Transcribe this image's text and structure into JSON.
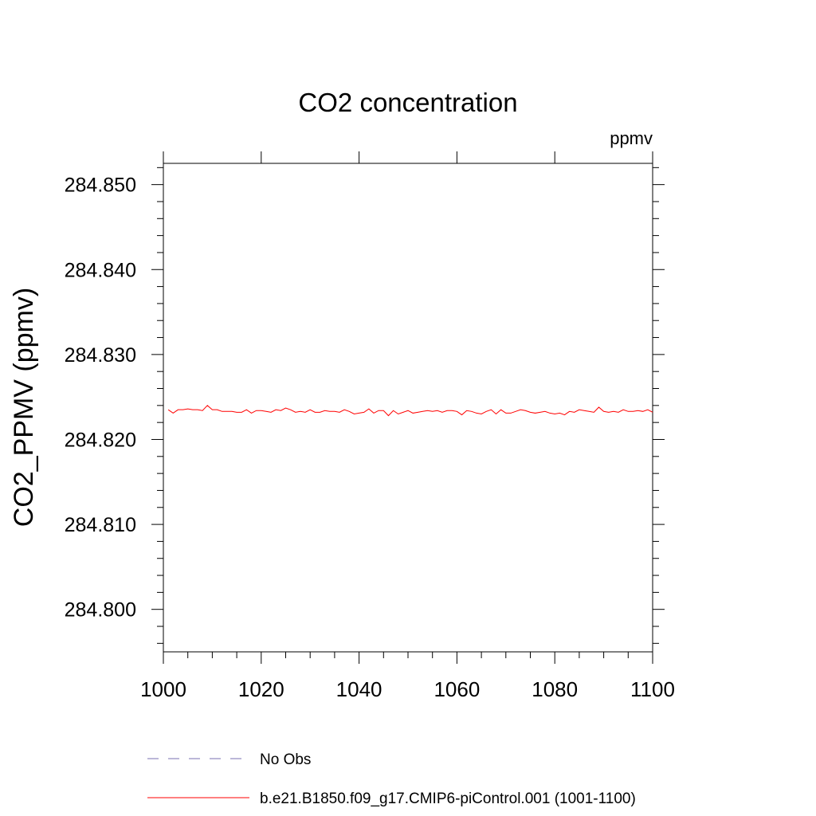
{
  "chart_data": {
    "type": "line",
    "title": "CO2 concentration",
    "units_label": "ppmv",
    "ylabel": "CO2_PPMV  (ppmv)",
    "xlabel": "",
    "xlim": [
      1000,
      1100
    ],
    "ylim": [
      284.795,
      284.8525
    ],
    "x_ticks": [
      1000,
      1020,
      1040,
      1060,
      1080,
      1100
    ],
    "x_tick_labels": [
      "1000",
      "1020",
      "1040",
      "1060",
      "1080",
      "1100"
    ],
    "y_ticks": [
      284.8,
      284.81,
      284.82,
      284.83,
      284.84,
      284.85
    ],
    "y_tick_labels": [
      "284.800",
      "284.810",
      "284.820",
      "284.830",
      "284.840",
      "284.850"
    ],
    "grid": false,
    "legend_position": "bottom",
    "series": [
      {
        "name": "b.e21.B1850.f09_g17.CMIP6-piControl.001 (1001-1100)",
        "color": "#ff0000",
        "style": "solid",
        "x_start": 1001,
        "x_step": 1,
        "values": [
          284.8235,
          284.8231,
          284.8235,
          284.8235,
          284.8236,
          284.8235,
          284.8235,
          284.8234,
          284.824,
          284.8235,
          284.8235,
          284.8233,
          284.8233,
          284.8233,
          284.8232,
          284.8232,
          284.8235,
          284.8231,
          284.8234,
          284.8234,
          284.8233,
          284.8232,
          284.8235,
          284.8234,
          284.8237,
          284.8235,
          284.8232,
          284.8233,
          284.8232,
          284.8235,
          284.8232,
          284.8232,
          284.8234,
          284.8233,
          284.8233,
          284.8232,
          284.8235,
          284.8233,
          284.823,
          284.8231,
          284.8232,
          284.8236,
          284.8231,
          284.8234,
          284.8234,
          284.8228,
          284.8234,
          284.823,
          284.8232,
          284.8234,
          284.8231,
          284.8232,
          284.8233,
          284.8234,
          284.8233,
          284.8234,
          284.8232,
          284.8234,
          284.8234,
          284.8233,
          284.8229,
          284.8234,
          284.8233,
          284.8231,
          284.823,
          284.8233,
          284.8235,
          284.823,
          284.8235,
          284.8231,
          284.8231,
          284.8233,
          284.8235,
          284.8234,
          284.8232,
          284.8231,
          284.8232,
          284.8233,
          284.8231,
          284.823,
          284.8231,
          284.8229,
          284.8233,
          284.8232,
          284.8235,
          284.8234,
          284.8233,
          284.8232,
          284.8238,
          284.8233,
          284.8232,
          284.8233,
          284.8232,
          284.8235,
          284.8233,
          284.8233,
          284.8234,
          284.8233,
          284.8235,
          284.8232
        ]
      },
      {
        "name": "No Obs",
        "color": "#7a6fb0",
        "style": "dashed",
        "values": []
      }
    ]
  }
}
